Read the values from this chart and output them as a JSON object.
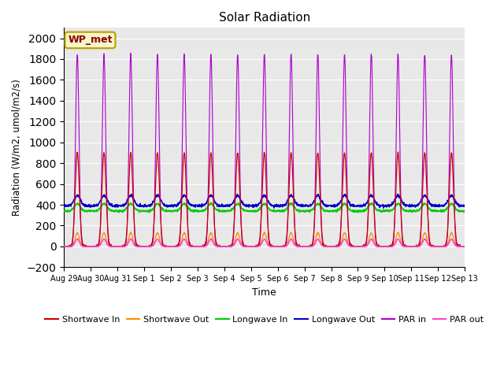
{
  "title": "Solar Radiation",
  "xlabel": "Time",
  "ylabel": "Radiation (W/m2, umol/m2/s)",
  "ylim": [
    -200,
    2100
  ],
  "yticks": [
    -200,
    0,
    200,
    400,
    600,
    800,
    1000,
    1200,
    1400,
    1600,
    1800,
    2000
  ],
  "bg_color": "#e8e8e8",
  "station_label": "WP_met",
  "series": {
    "shortwave_in": {
      "color": "#cc0000",
      "label": "Shortwave In"
    },
    "shortwave_out": {
      "color": "#ff8c00",
      "label": "Shortwave Out"
    },
    "longwave_in": {
      "color": "#00cc00",
      "label": "Longwave In"
    },
    "longwave_out": {
      "color": "#0000cc",
      "label": "Longwave Out"
    },
    "par_in": {
      "color": "#aa00cc",
      "label": "PAR in"
    },
    "par_out": {
      "color": "#ff44cc",
      "label": "PAR out"
    }
  },
  "x_tick_labels": [
    "Aug 29",
    "Aug 30",
    "Aug 31",
    "Sep 1",
    "Sep 2",
    "Sep 3",
    "Sep 4",
    "Sep 5",
    "Sep 6",
    "Sep 7",
    "Sep 8",
    "Sep 9",
    "Sep 10",
    "Sep 11",
    "Sep 12",
    "Sep 13"
  ],
  "x_tick_positions": [
    0,
    1,
    2,
    3,
    4,
    5,
    6,
    7,
    8,
    9,
    10,
    11,
    12,
    13,
    14,
    15
  ]
}
